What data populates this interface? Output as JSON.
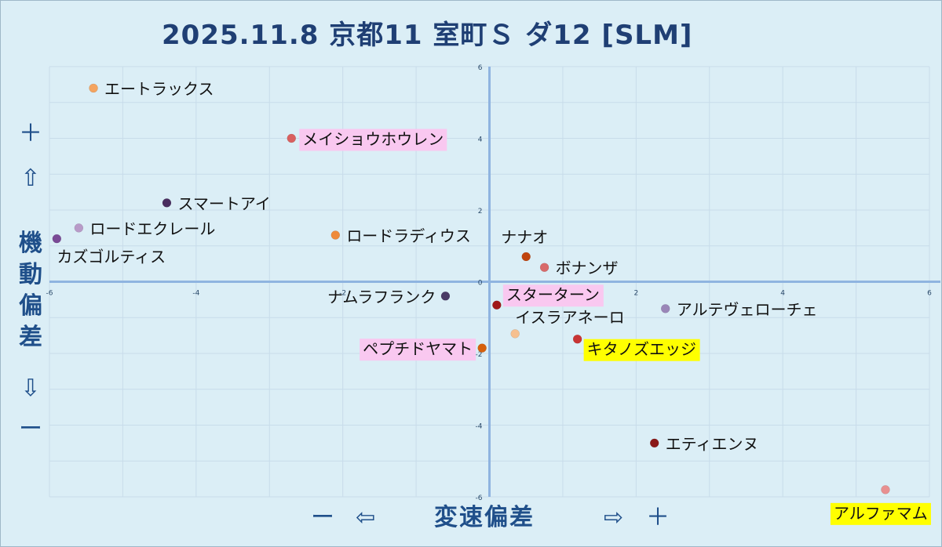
{
  "title": "2025.11.8 京都11 室町Ｓ ダ12 [SLM]",
  "y_axis": {
    "plus": "＋",
    "up_arrow": "⇧",
    "title": "機動偏差",
    "down_arrow": "⇩",
    "minus": "ー"
  },
  "x_axis": {
    "minus": "ー",
    "left_arrow": "⇦",
    "title": "変速偏差",
    "right_arrow": "⇨",
    "plus": "＋"
  },
  "colors": {
    "background": "#dbeef6",
    "axis": "#8fb4e0",
    "grid": "#c8dcea",
    "highlight_pink": "#f9c8f0",
    "highlight_yellow": "#ffff00"
  },
  "chart_data": {
    "type": "scatter",
    "title": "2025.11.8 京都11 室町Ｓ ダ12 [SLM]",
    "xlabel": "変速偏差",
    "ylabel": "機動偏差",
    "xlim": [
      -6,
      6
    ],
    "ylim": [
      -6,
      6
    ],
    "xticks": [
      "-6",
      "-4",
      "-2",
      "0",
      "2",
      "4",
      "6"
    ],
    "yticks": [
      "-6",
      "-4",
      "-2",
      "0",
      "2",
      "4",
      "6"
    ],
    "grid": true,
    "points": [
      {
        "name": "エートラックス",
        "x": -5.4,
        "y": 5.4,
        "color": "#f4a460",
        "highlight": "none"
      },
      {
        "name": "メイショウホウレン",
        "x": -2.7,
        "y": 4.0,
        "color": "#d9605f",
        "highlight": "pink"
      },
      {
        "name": "スマートアイ",
        "x": -4.4,
        "y": 2.2,
        "color": "#4a2e60",
        "highlight": "none"
      },
      {
        "name": "ロードエクレール",
        "x": -5.6,
        "y": 1.5,
        "color": "#b89ac8",
        "highlight": "none"
      },
      {
        "name": "カズゴルティス",
        "x": -5.9,
        "y": 1.2,
        "color": "#7a4a96",
        "highlight": "none"
      },
      {
        "name": "ロードラディウス",
        "x": -2.1,
        "y": 1.3,
        "color": "#ee8a3a",
        "highlight": "none"
      },
      {
        "name": "ナナオ",
        "x": 0.5,
        "y": 0.7,
        "color": "#c0440e",
        "highlight": "none"
      },
      {
        "name": "ボナンザ",
        "x": 0.75,
        "y": 0.4,
        "color": "#d86a6a",
        "highlight": "none"
      },
      {
        "name": "ナムラフランク",
        "x": -0.6,
        "y": -0.4,
        "color": "#4a3a66",
        "highlight": "none"
      },
      {
        "name": "スターターン",
        "x": 0.1,
        "y": -0.65,
        "color": "#a01818",
        "highlight": "pink"
      },
      {
        "name": "アルテヴェローチェ",
        "x": 2.4,
        "y": -0.75,
        "color": "#9a86b8",
        "highlight": "none"
      },
      {
        "name": "イスラアネーロ",
        "x": 0.35,
        "y": -1.45,
        "color": "#f6c090",
        "highlight": "none"
      },
      {
        "name": "キタノズエッジ",
        "x": 1.2,
        "y": -1.6,
        "color": "#c83434",
        "highlight": "yellow"
      },
      {
        "name": "ペプチドヤマト",
        "x": -0.1,
        "y": -1.85,
        "color": "#d6600c",
        "highlight": "pink"
      },
      {
        "name": "エティエンヌ",
        "x": 2.25,
        "y": -4.5,
        "color": "#8a1818",
        "highlight": "none"
      },
      {
        "name": "アルファマム",
        "x": 5.4,
        "y": -5.8,
        "color": "#e89090",
        "highlight": "yellow"
      }
    ]
  }
}
